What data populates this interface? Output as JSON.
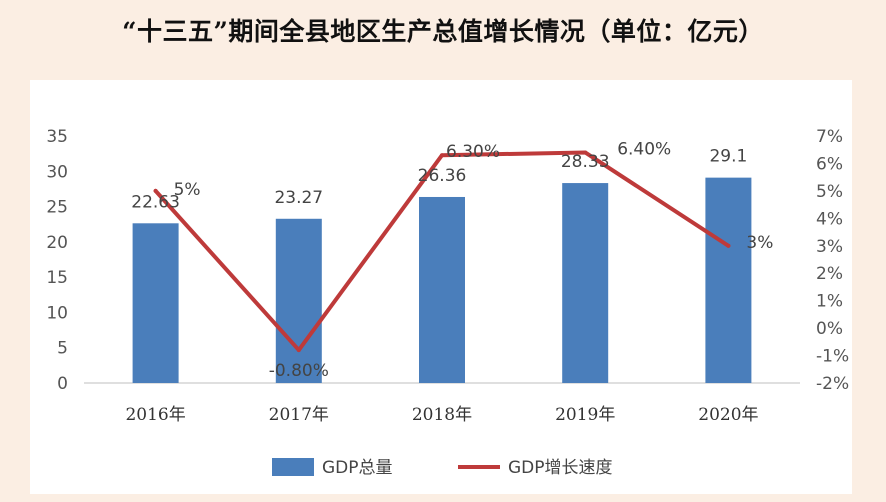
{
  "title": "“十三五”期间全县地区生产总值增长情况（单位：亿元）",
  "colors": {
    "bar": "#4a7ebb",
    "line": "#be3a3a",
    "background": "#fbeee3",
    "plot": "#ffffff"
  },
  "chart_data": {
    "type": "bar",
    "title": "“十三五”期间全县地区生产总值增长情况（单位：亿元）",
    "categories": [
      "2016年",
      "2017年",
      "2018年",
      "2019年",
      "2020年"
    ],
    "series": [
      {
        "name": "GDP总量",
        "type": "bar",
        "axis": "left",
        "values": [
          22.63,
          23.27,
          26.36,
          28.33,
          29.1
        ],
        "labels": [
          "22.63",
          "23.27",
          "26.36",
          "28.33",
          "29.1"
        ]
      },
      {
        "name": "GDP增长速度",
        "type": "line",
        "axis": "right",
        "values": [
          5,
          -0.8,
          6.3,
          6.4,
          3
        ],
        "labels": [
          "5%",
          "-0.80%",
          "6.30%",
          "6.40%",
          "3%"
        ]
      }
    ],
    "y_left": {
      "min": 0,
      "max": 35,
      "step": 5,
      "ticks": [
        "0",
        "5",
        "10",
        "15",
        "20",
        "25",
        "30",
        "35"
      ]
    },
    "y_right": {
      "min": -2,
      "max": 7,
      "step": 1,
      "ticks": [
        "-2%",
        "-1%",
        "0%",
        "1%",
        "2%",
        "3%",
        "4%",
        "5%",
        "6%",
        "7%"
      ]
    },
    "xlabel": "",
    "ylabel": "",
    "grid": false,
    "legend_position": "bottom"
  }
}
